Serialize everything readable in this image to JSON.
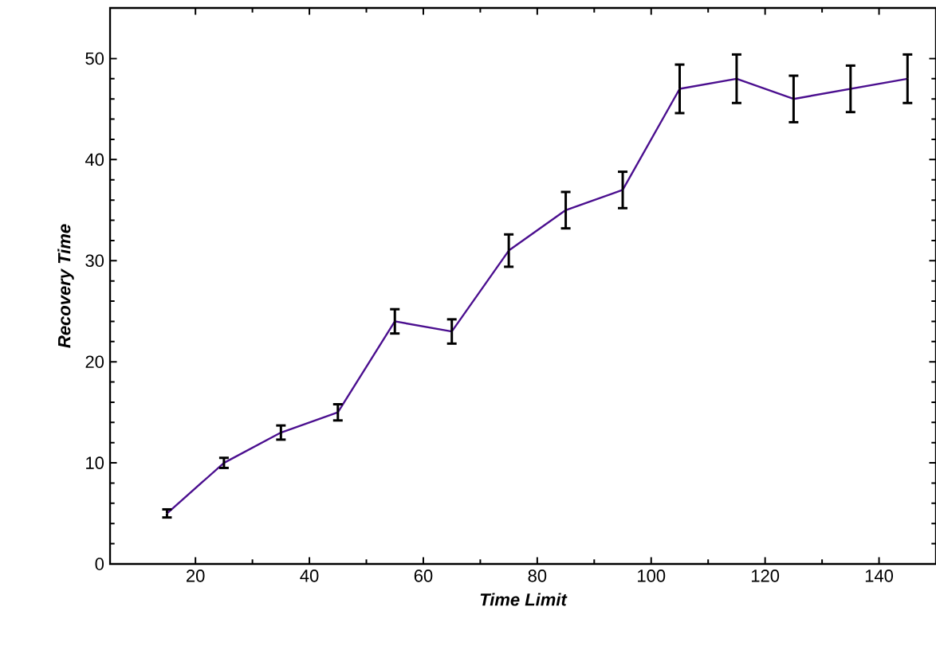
{
  "chart_data": {
    "type": "line",
    "xlabel": "Time Limit",
    "ylabel": "Recovery Time",
    "x": [
      15,
      25,
      35,
      45,
      55,
      65,
      75,
      85,
      95,
      105,
      115,
      125,
      135,
      145
    ],
    "series": [
      {
        "color": "#4b0f8f",
        "values": [
          5,
          10,
          13,
          15,
          24,
          23,
          31,
          35,
          37,
          47,
          48,
          46,
          47,
          48
        ],
        "errors": [
          0.4,
          0.5,
          0.7,
          0.8,
          1.2,
          1.2,
          1.6,
          1.8,
          1.8,
          2.4,
          2.4,
          2.3,
          2.3,
          2.4
        ]
      }
    ],
    "xlim": [
      5,
      150
    ],
    "ylim": [
      0,
      55
    ],
    "xticks": [
      20,
      40,
      60,
      80,
      100,
      120,
      140
    ],
    "yticks": [
      0,
      10,
      20,
      30,
      40,
      50
    ],
    "marker": "none",
    "line_style": "solid"
  }
}
